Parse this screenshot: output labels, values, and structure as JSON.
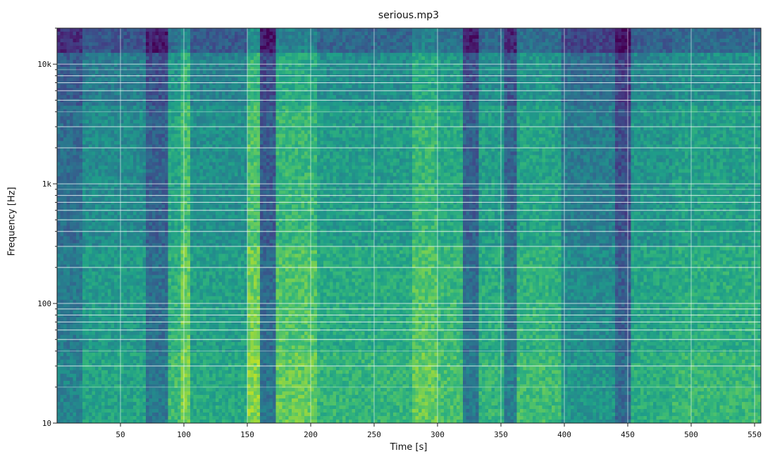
{
  "chart_data": {
    "type": "heatmap",
    "title": "serious.mp3",
    "xlabel": "Time [s]",
    "ylabel": "Frequency [Hz]",
    "xlim": [
      0,
      555
    ],
    "ylim": [
      10,
      20000
    ],
    "yscale": "log",
    "colormap": "viridis",
    "grid": true,
    "x_ticks": [
      {
        "value": 50,
        "label": "50"
      },
      {
        "value": 100,
        "label": "100"
      },
      {
        "value": 150,
        "label": "150"
      },
      {
        "value": 200,
        "label": "200"
      },
      {
        "value": 250,
        "label": "250"
      },
      {
        "value": 300,
        "label": "300"
      },
      {
        "value": 350,
        "label": "350"
      },
      {
        "value": 400,
        "label": "400"
      },
      {
        "value": 450,
        "label": "450"
      },
      {
        "value": 500,
        "label": "500"
      },
      {
        "value": 550,
        "label": "550"
      }
    ],
    "y_ticks": [
      {
        "value": 10,
        "label": "10"
      },
      {
        "value": 100,
        "label": "100"
      },
      {
        "value": 1000,
        "label": "1k"
      },
      {
        "value": 10000,
        "label": "10k"
      }
    ],
    "time_segments": [
      {
        "start": 0,
        "end": 20,
        "intensity": 0.35
      },
      {
        "start": 20,
        "end": 70,
        "intensity": 0.48
      },
      {
        "start": 70,
        "end": 88,
        "intensity": 0.3
      },
      {
        "start": 88,
        "end": 98,
        "intensity": 0.58
      },
      {
        "start": 98,
        "end": 105,
        "intensity": 0.7
      },
      {
        "start": 105,
        "end": 116,
        "intensity": 0.5
      },
      {
        "start": 116,
        "end": 150,
        "intensity": 0.5
      },
      {
        "start": 150,
        "end": 160,
        "intensity": 0.72
      },
      {
        "start": 160,
        "end": 172,
        "intensity": 0.28
      },
      {
        "start": 172,
        "end": 206,
        "intensity": 0.66
      },
      {
        "start": 206,
        "end": 280,
        "intensity": 0.55
      },
      {
        "start": 280,
        "end": 300,
        "intensity": 0.66
      },
      {
        "start": 300,
        "end": 320,
        "intensity": 0.6
      },
      {
        "start": 320,
        "end": 332,
        "intensity": 0.3
      },
      {
        "start": 332,
        "end": 352,
        "intensity": 0.55
      },
      {
        "start": 352,
        "end": 362,
        "intensity": 0.32
      },
      {
        "start": 362,
        "end": 398,
        "intensity": 0.58
      },
      {
        "start": 398,
        "end": 440,
        "intensity": 0.42
      },
      {
        "start": 440,
        "end": 452,
        "intensity": 0.24
      },
      {
        "start": 452,
        "end": 485,
        "intensity": 0.52
      },
      {
        "start": 485,
        "end": 555,
        "intensity": 0.56
      }
    ],
    "harmonic_lines_hz": [
      30,
      50,
      60,
      70,
      80,
      90,
      200,
      300,
      400,
      500,
      600,
      700,
      800,
      2000,
      3000,
      5000,
      6000,
      7000,
      8000
    ]
  }
}
